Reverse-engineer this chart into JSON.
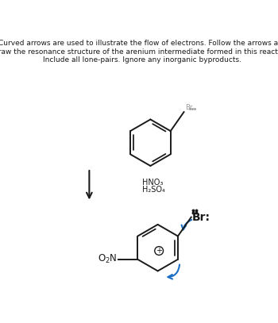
{
  "title_text": "Curved arrows are used to illustrate the flow of electrons. Follow the arrows and\ndraw the resonance structure of the arenium intermediate formed in this reaction.\nInclude all lone-pairs. Ignore any inorganic byproducts.",
  "reagents_line1": "HNO₃",
  "reagents_line2": "H₂SO₄",
  "line_color": "#1a1a1a",
  "blue_arrow_color": "#1a6fc4",
  "background": "#ffffff"
}
